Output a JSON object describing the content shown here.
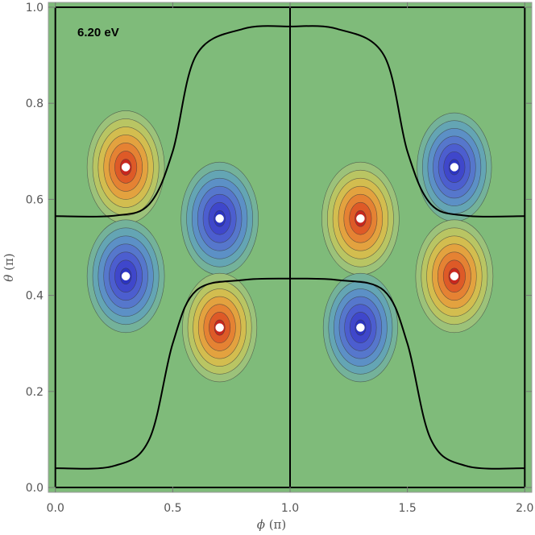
{
  "chart_data": {
    "type": "heatmap",
    "subtype": "contour",
    "annotation": "6.20 eV",
    "xlabel": {
      "symbol": "ϕ",
      "unit": " (π)"
    },
    "ylabel": {
      "symbol": "θ",
      "unit": " (π)"
    },
    "xlim": [
      -0.03,
      2.03
    ],
    "ylim": [
      -0.01,
      1.01
    ],
    "x_ticks": [
      "0.0",
      "0.5",
      "1.0",
      "1.5",
      "2.0"
    ],
    "y_ticks": [
      "0.0",
      "0.2",
      "0.4",
      "0.6",
      "0.8",
      "1.0"
    ],
    "colormap": [
      "#2b3cc8",
      "#4f7fd0",
      "#6aa5b8",
      "#8fbf85",
      "#c8c458",
      "#e5a23c",
      "#e06a28",
      "#c8271e"
    ],
    "background_color": "#7fbb7a",
    "extrema": [
      {
        "x": 0.3,
        "y": 0.667,
        "sign": "positive",
        "amplitude": 1.0
      },
      {
        "x": 0.7,
        "y": 0.56,
        "sign": "negative",
        "amplitude": 1.0
      },
      {
        "x": 0.3,
        "y": 0.44,
        "sign": "negative",
        "amplitude": 1.0
      },
      {
        "x": 0.7,
        "y": 0.333,
        "sign": "positive",
        "amplitude": 0.85
      },
      {
        "x": 1.3,
        "y": 0.56,
        "sign": "positive",
        "amplitude": 1.0
      },
      {
        "x": 1.7,
        "y": 0.667,
        "sign": "negative",
        "amplitude": 0.85
      },
      {
        "x": 1.3,
        "y": 0.333,
        "sign": "negative",
        "amplitude": 0.85
      },
      {
        "x": 1.7,
        "y": 0.44,
        "sign": "positive",
        "amplitude": 1.0
      }
    ],
    "nodal_lines": [
      {
        "x": [
          0.0,
          0.0
        ],
        "y": [
          0.0,
          1.0
        ]
      },
      {
        "x": [
          1.0,
          1.0
        ],
        "y": [
          0.0,
          1.0
        ]
      },
      {
        "x": [
          2.0,
          2.0
        ],
        "y": [
          0.0,
          1.0
        ]
      },
      {
        "x": [
          0.0,
          2.0
        ],
        "y": [
          0.0,
          0.0
        ]
      },
      {
        "x": [
          0.0,
          2.0
        ],
        "y": [
          1.0,
          1.0
        ]
      },
      {
        "x": [
          0.0,
          0.25,
          0.4,
          0.5,
          0.6,
          0.8,
          1.0
        ],
        "y": [
          0.04,
          0.045,
          0.1,
          0.3,
          0.41,
          0.432,
          0.435
        ]
      },
      {
        "x": [
          1.0,
          1.2,
          1.4,
          1.5,
          1.6,
          1.75,
          2.0
        ],
        "y": [
          0.435,
          0.432,
          0.41,
          0.3,
          0.1,
          0.045,
          0.04
        ]
      },
      {
        "x": [
          0.0,
          0.25,
          0.4,
          0.5,
          0.6,
          0.8,
          1.0
        ],
        "y": [
          0.565,
          0.566,
          0.59,
          0.7,
          0.9,
          0.955,
          0.96
        ]
      },
      {
        "x": [
          1.0,
          1.2,
          1.4,
          1.5,
          1.6,
          1.75,
          2.0
        ],
        "y": [
          0.96,
          0.955,
          0.9,
          0.7,
          0.59,
          0.566,
          0.565
        ]
      }
    ]
  }
}
